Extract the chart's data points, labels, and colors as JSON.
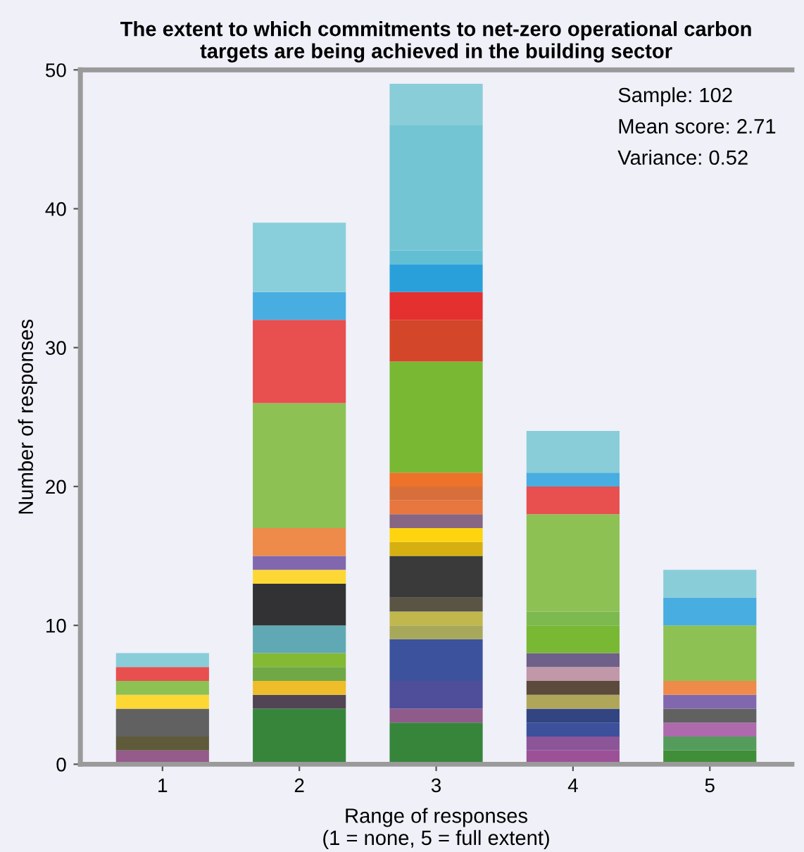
{
  "chart_data": {
    "type": "bar",
    "stacked": true,
    "title": "The extent to which commitments to net-zero operational carbon\ntargets are being achieved in the building sector",
    "xlabel": "Range of responses\n(1 = none, 5 = full extent)",
    "ylabel": "Number of responses",
    "categories": [
      "1",
      "2",
      "3",
      "4",
      "5"
    ],
    "ylim": [
      0,
      50
    ],
    "yticks": [
      0,
      10,
      20,
      30,
      40,
      50
    ],
    "grid": false,
    "legend": false,
    "annotations": [
      "Sample: 102",
      "Mean score: 2.71",
      "Variance: 0.52"
    ],
    "series": [
      {
        "values": [
          1,
          4,
          3,
          1,
          1
        ],
        "colors": [
          "#955b8a",
          "#36853b",
          "#36853b",
          "#9c5098",
          "#408e38"
        ]
      },
      {
        "values": [
          1,
          1,
          1,
          1,
          1
        ],
        "colors": [
          "#5f5a3a",
          "#524454",
          "#8e5b8a",
          "#8c5598",
          "#559c5c"
        ]
      },
      {
        "values": [
          2,
          1,
          2,
          1,
          1
        ],
        "colors": [
          "#616161",
          "#efbc2a",
          "#4e4e9a",
          "#3c509c",
          "#ae6aac"
        ]
      },
      {
        "values": [
          1,
          1,
          3,
          1,
          1
        ],
        "colors": [
          "#fdd835",
          "#70a845",
          "#3c529c",
          "#324582",
          "#616161"
        ]
      },
      {
        "values": [
          1,
          1,
          1,
          1,
          1
        ],
        "colors": [
          "#8dc153",
          "#84b934",
          "#a8a85a",
          "#b0a65a",
          "#8168ae"
        ]
      },
      {
        "values": [
          1,
          2,
          1,
          1,
          1
        ],
        "colors": [
          "#e84f4f",
          "#60a8b4",
          "#c0b84c",
          "#5c4a3c",
          "#ee8a4a"
        ]
      },
      {
        "values": [
          1,
          3,
          1,
          1,
          4
        ],
        "colors": [
          "#89cdd9",
          "#323234",
          "#595444",
          "#c098a8",
          "#8dc153"
        ]
      },
      {
        "values": [
          null,
          1,
          3,
          1,
          2
        ],
        "colors": [
          null,
          "#fdd835",
          "#3a3a3a",
          "#6e6088",
          "#48ade0"
        ]
      },
      {
        "values": [
          null,
          1,
          1,
          2,
          2
        ],
        "colors": [
          null,
          "#8168ae",
          "#d6b010",
          "#79b833",
          "#89cdd9"
        ]
      },
      {
        "values": [
          null,
          2,
          1,
          1,
          null
        ],
        "colors": [
          null,
          "#ee8a4a",
          "#fdd40e",
          "#7cba50",
          null
        ]
      },
      {
        "values": [
          null,
          9,
          1,
          7,
          null
        ],
        "colors": [
          null,
          "#8dc153",
          "#866682",
          "#8dc153",
          null
        ]
      },
      {
        "values": [
          null,
          6,
          1,
          2,
          null
        ],
        "colors": [
          null,
          "#e84f4f",
          "#e8763f",
          "#e84f4f",
          null
        ]
      },
      {
        "values": [
          null,
          2,
          1,
          1,
          null
        ],
        "colors": [
          null,
          "#48ade0",
          "#d86f3b",
          "#48ade0",
          null
        ]
      },
      {
        "values": [
          null,
          5,
          1,
          3,
          null
        ],
        "colors": [
          null,
          "#89cfdb",
          "#ec7329",
          "#89cdd9",
          null
        ]
      },
      {
        "values": [
          null,
          null,
          8,
          null,
          null
        ],
        "colors": [
          null,
          null,
          "#79b833",
          null,
          null
        ]
      },
      {
        "values": [
          null,
          null,
          3,
          null,
          null
        ],
        "colors": [
          null,
          null,
          "#d4462a",
          null,
          null
        ]
      },
      {
        "values": [
          null,
          null,
          2,
          null,
          null
        ],
        "colors": [
          null,
          null,
          "#e53030",
          null,
          null
        ]
      },
      {
        "values": [
          null,
          null,
          2,
          null,
          null
        ],
        "colors": [
          null,
          null,
          "#2aa0da",
          null,
          null
        ]
      },
      {
        "values": [
          null,
          null,
          1,
          null,
          null
        ],
        "colors": [
          null,
          null,
          "#62bfd3",
          null,
          null
        ]
      },
      {
        "values": [
          null,
          null,
          9,
          null,
          null
        ],
        "colors": [
          null,
          null,
          "#73c5d3",
          null,
          null
        ]
      },
      {
        "values": [
          null,
          null,
          3,
          null,
          null
        ],
        "colors": [
          null,
          null,
          "#89cdd9",
          null,
          null
        ]
      }
    ]
  }
}
